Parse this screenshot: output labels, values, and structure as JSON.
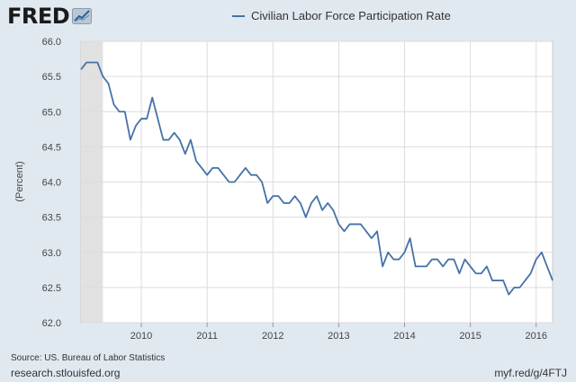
{
  "header": {
    "logo_text": "FRED",
    "logo_icon": "chart-line-icon"
  },
  "legend": {
    "label": "Civilian Labor Force Participation Rate"
  },
  "footer": {
    "source": "Source: US. Bureau of Labor Statistics",
    "site": "research.stlouisfed.org",
    "short_link": "myf.red/g/4FTJ"
  },
  "colors": {
    "series": "#4572a7",
    "background": "#e1e9f0",
    "plot_background": "#ffffff",
    "recession_shade": "#e1e1e1",
    "grid": "#dcdcdc"
  },
  "chart_data": {
    "type": "line",
    "title": "",
    "xlabel": "",
    "ylabel": "(Percent)",
    "ylim": [
      62.0,
      66.0
    ],
    "yticks": [
      "62.0",
      "62.5",
      "63.0",
      "63.5",
      "64.0",
      "64.5",
      "65.0",
      "65.5",
      "66.0"
    ],
    "xticks": [
      "2010",
      "2011",
      "2012",
      "2013",
      "2014",
      "2015",
      "2016"
    ],
    "xlim": [
      "2009-02",
      "2016-04"
    ],
    "grid": true,
    "shaded_periods": [
      {
        "start": "2009-02",
        "end": "2009-06",
        "label": "recession"
      }
    ],
    "series": [
      {
        "name": "Civilian Labor Force Participation Rate",
        "x": [
          "2009-02",
          "2009-03",
          "2009-04",
          "2009-05",
          "2009-06",
          "2009-07",
          "2009-08",
          "2009-09",
          "2009-10",
          "2009-11",
          "2009-12",
          "2010-01",
          "2010-02",
          "2010-03",
          "2010-04",
          "2010-05",
          "2010-06",
          "2010-07",
          "2010-08",
          "2010-09",
          "2010-10",
          "2010-11",
          "2010-12",
          "2011-01",
          "2011-02",
          "2011-03",
          "2011-04",
          "2011-05",
          "2011-06",
          "2011-07",
          "2011-08",
          "2011-09",
          "2011-10",
          "2011-11",
          "2011-12",
          "2012-01",
          "2012-02",
          "2012-03",
          "2012-04",
          "2012-05",
          "2012-06",
          "2012-07",
          "2012-08",
          "2012-09",
          "2012-10",
          "2012-11",
          "2012-12",
          "2013-01",
          "2013-02",
          "2013-03",
          "2013-04",
          "2013-05",
          "2013-06",
          "2013-07",
          "2013-08",
          "2013-09",
          "2013-10",
          "2013-11",
          "2013-12",
          "2014-01",
          "2014-02",
          "2014-03",
          "2014-04",
          "2014-05",
          "2014-06",
          "2014-07",
          "2014-08",
          "2014-09",
          "2014-10",
          "2014-11",
          "2014-12",
          "2015-01",
          "2015-02",
          "2015-03",
          "2015-04",
          "2015-05",
          "2015-06",
          "2015-07",
          "2015-08",
          "2015-09",
          "2015-10",
          "2015-11",
          "2015-12",
          "2016-01",
          "2016-02",
          "2016-03",
          "2016-04"
        ],
        "values": [
          65.6,
          65.7,
          65.7,
          65.7,
          65.5,
          65.4,
          65.1,
          65.0,
          65.0,
          64.6,
          64.8,
          64.9,
          64.9,
          65.2,
          64.9,
          64.6,
          64.6,
          64.7,
          64.6,
          64.4,
          64.6,
          64.3,
          64.2,
          64.1,
          64.2,
          64.2,
          64.1,
          64.0,
          64.0,
          64.1,
          64.2,
          64.1,
          64.1,
          64.0,
          63.7,
          63.8,
          63.8,
          63.7,
          63.7,
          63.8,
          63.7,
          63.5,
          63.7,
          63.8,
          63.6,
          63.7,
          63.6,
          63.4,
          63.3,
          63.4,
          63.4,
          63.4,
          63.3,
          63.2,
          63.3,
          62.8,
          63.0,
          62.9,
          62.9,
          63.0,
          63.2,
          62.8,
          62.8,
          62.8,
          62.9,
          62.9,
          62.8,
          62.9,
          62.9,
          62.7,
          62.9,
          62.8,
          62.7,
          62.7,
          62.8,
          62.6,
          62.6,
          62.6,
          62.4,
          62.5,
          62.5,
          62.6,
          62.7,
          62.9,
          63.0,
          62.8,
          62.6
        ]
      }
    ]
  }
}
